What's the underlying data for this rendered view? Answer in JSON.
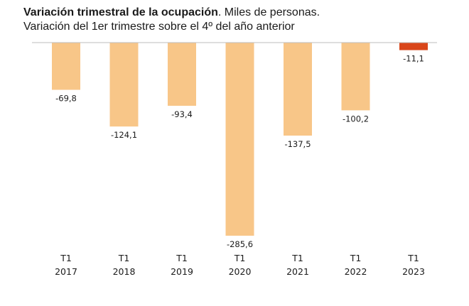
{
  "header": {
    "title": "Variación trimestral de la ocupación",
    "title_suffix": ". Miles de personas.",
    "subtitle": "Variación del 1er trimestre sobre el 4º del año anterior"
  },
  "chart_data": {
    "type": "bar",
    "title": "Variación trimestral de la ocupación. Miles de personas.",
    "subtitle": "Variación del 1er trimestre sobre el 4º del año anterior",
    "categories": [
      {
        "quarter": "T1",
        "year": "2017"
      },
      {
        "quarter": "T1",
        "year": "2018"
      },
      {
        "quarter": "T1",
        "year": "2019"
      },
      {
        "quarter": "T1",
        "year": "2020"
      },
      {
        "quarter": "T1",
        "year": "2021"
      },
      {
        "quarter": "T1",
        "year": "2022"
      },
      {
        "quarter": "T1",
        "year": "2023"
      }
    ],
    "values": [
      -69.8,
      -124.1,
      -93.4,
      -285.6,
      -137.5,
      -100.2,
      -11.1
    ],
    "value_labels": [
      "-69,8",
      "-124,1",
      "-93,4",
      "-285,6",
      "-137,5",
      "-100,2",
      "-11,1"
    ],
    "ylim": [
      -300,
      0
    ],
    "grid": false,
    "legend": "none",
    "colors": {
      "bar": "#f8c688",
      "highlight": "#d9461a",
      "baseline": "#bdbdbd"
    },
    "highlight_index": 6
  }
}
